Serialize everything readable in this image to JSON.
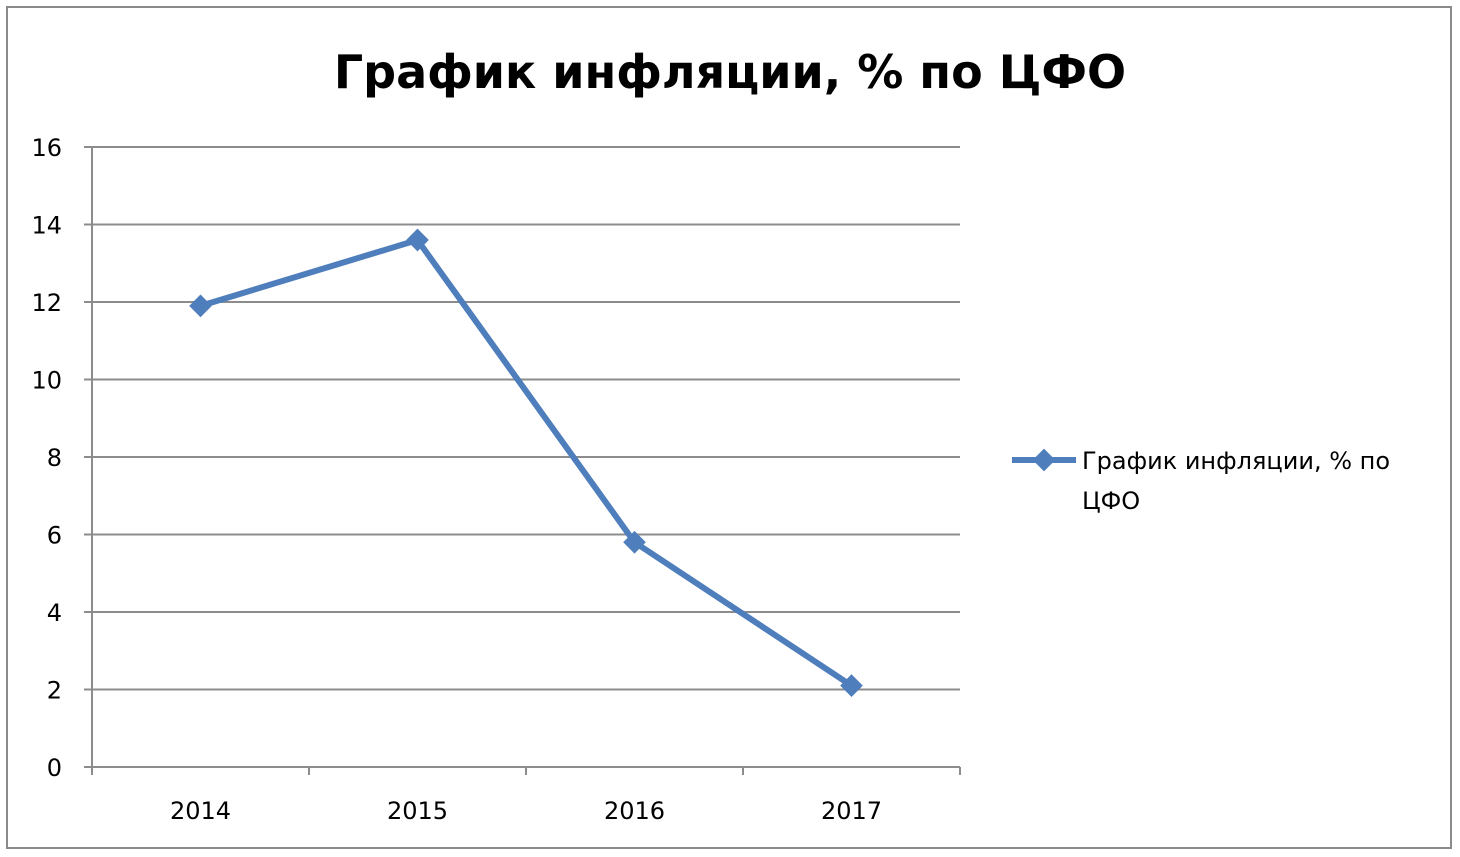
{
  "chart_data": {
    "type": "line",
    "title": "График инфляции, % по ЦФО",
    "categories": [
      "2014",
      "2015",
      "2016",
      "2017"
    ],
    "series": [
      {
        "name": "График инфляции, % по ЦФО",
        "values": [
          11.9,
          13.6,
          5.8,
          2.1
        ],
        "color": "#4f7ebc",
        "marker": "diamond"
      }
    ],
    "ylim": [
      0,
      16
    ],
    "yticks": [
      "0",
      "2",
      "4",
      "6",
      "8",
      "10",
      "12",
      "14",
      "16"
    ],
    "grid": true,
    "legend": "right",
    "legend_lines": [
      "График инфляции, % по",
      "ЦФО"
    ]
  }
}
